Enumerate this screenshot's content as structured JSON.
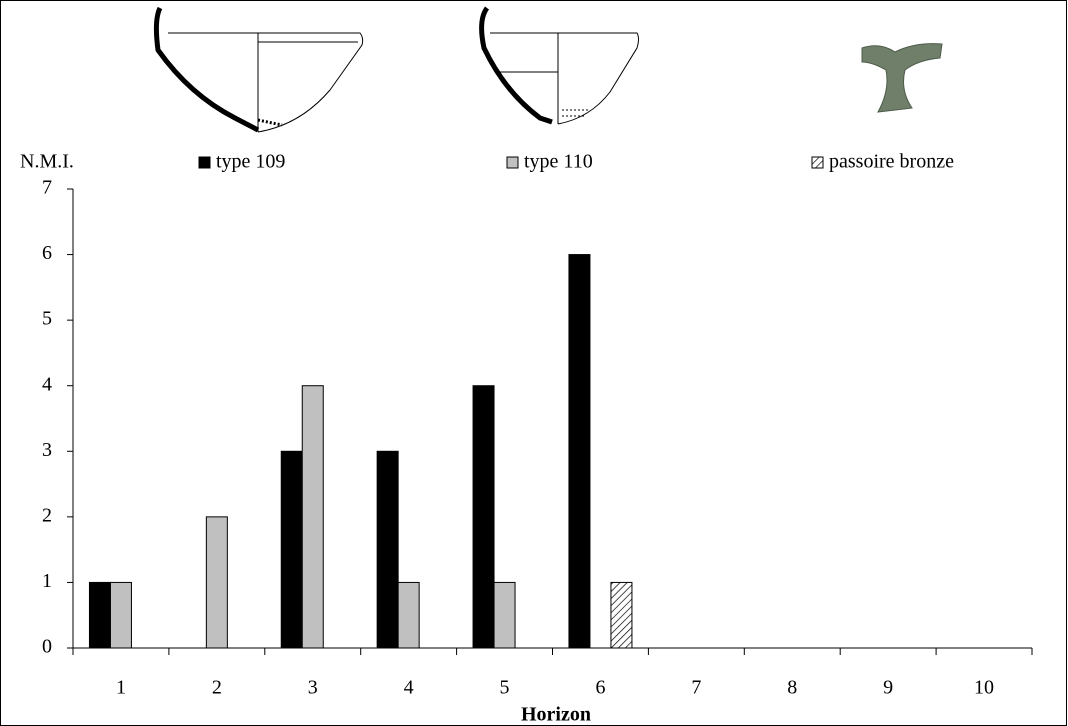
{
  "chart_data": {
    "type": "bar",
    "y_label": "N.M.I.",
    "x_label": "Horizon",
    "categories": [
      "1",
      "2",
      "3",
      "4",
      "5",
      "6",
      "7",
      "8",
      "9",
      "10"
    ],
    "series": [
      {
        "name": "type 109",
        "color": "#000000",
        "values": [
          1,
          0,
          3,
          3,
          4,
          6,
          0,
          0,
          0,
          0
        ]
      },
      {
        "name": "type 110",
        "color": "#c0c0c0",
        "values": [
          1,
          2,
          4,
          1,
          1,
          0,
          0,
          0,
          0,
          0
        ]
      },
      {
        "name": "passoire bronze",
        "color": "#ffffff",
        "pattern": "hatch",
        "values": [
          0,
          0,
          0,
          0,
          0,
          1,
          0,
          0,
          0,
          0
        ]
      }
    ],
    "ylim": [
      0,
      7
    ],
    "yticks": [
      0,
      1,
      2,
      3,
      4,
      5,
      6,
      7
    ],
    "grid": false
  }
}
